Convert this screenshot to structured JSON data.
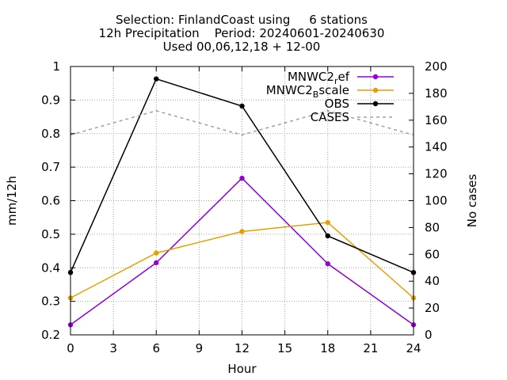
{
  "chart_data": {
    "type": "line",
    "title_lines": [
      "Selection: FinlandCoast using     6 stations",
      "12h Precipitation    Period: 20240601-20240630",
      "Used 00,06,12,18 + 12-00"
    ],
    "xlabel": "Hour",
    "ylabel": "mm/12h",
    "y2label": "No cases",
    "xlim": [
      0,
      24
    ],
    "ylim": [
      0.2,
      1.0
    ],
    "y2lim": [
      0,
      200
    ],
    "xticks": [
      "0",
      "3",
      "6",
      "9",
      "12",
      "15",
      "18",
      "21",
      "24"
    ],
    "yticks": [
      "0.2",
      "0.3",
      "0.4",
      "0.5",
      "0.6",
      "0.7",
      "0.8",
      "0.9",
      "1"
    ],
    "y2ticks": [
      "0",
      "20",
      "40",
      "60",
      "80",
      "100",
      "120",
      "140",
      "160",
      "180",
      "200"
    ],
    "grid": true,
    "legend_position": "top-right",
    "x": [
      0,
      6,
      12,
      18,
      24
    ],
    "series": [
      {
        "name": "MNWC2_ref",
        "legend_main": "MNWC2",
        "legend_sub": "r",
        "legend_tail": "ef",
        "color": "#9400d3",
        "axis": "y1",
        "style": "solid",
        "marker": true,
        "values": [
          0.23,
          0.415,
          0.667,
          0.412,
          0.23
        ]
      },
      {
        "name": "MNWC2_Bscale",
        "legend_main": "MNWC2",
        "legend_sub": "B",
        "legend_tail": "scale",
        "color": "#e69f00",
        "axis": "y1",
        "style": "solid",
        "marker": true,
        "values": [
          0.31,
          0.444,
          0.508,
          0.535,
          0.31
        ]
      },
      {
        "name": "OBS",
        "legend_main": "OBS",
        "legend_sub": "",
        "legend_tail": "",
        "color": "#000000",
        "axis": "y1",
        "style": "solid",
        "marker": true,
        "values": [
          0.386,
          0.963,
          0.882,
          0.495,
          0.386
        ]
      },
      {
        "name": "CASES",
        "legend_main": "CASES",
        "legend_sub": "",
        "legend_tail": "",
        "color": "#a0a0a0",
        "axis": "y2",
        "style": "dashed",
        "marker": false,
        "values": [
          149,
          167,
          149,
          167,
          149
        ]
      }
    ]
  }
}
